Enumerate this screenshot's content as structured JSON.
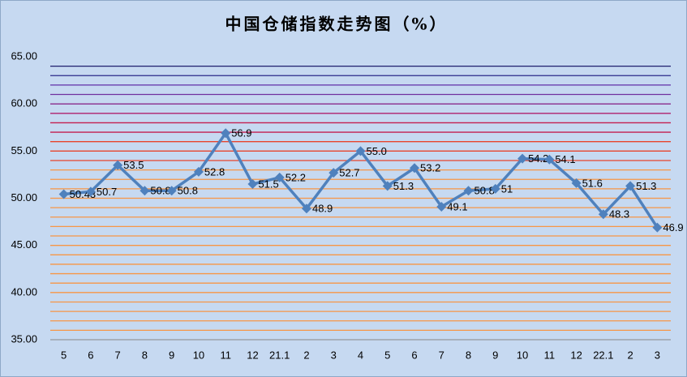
{
  "chart_data": {
    "type": "line",
    "title": "中国仓储指数走势图（%）",
    "categories": [
      "5",
      "6",
      "7",
      "8",
      "9",
      "10",
      "11",
      "12",
      "21.1",
      "2",
      "3",
      "4",
      "5",
      "6",
      "7",
      "8",
      "9",
      "10",
      "11",
      "12",
      "22.1",
      "2",
      "3"
    ],
    "series": [
      {
        "name": "中国仓储指数",
        "color": "#4f81bd",
        "values": [
          50.43,
          50.7,
          53.5,
          50.8,
          50.8,
          52.8,
          56.9,
          51.5,
          52.2,
          48.9,
          52.7,
          55.0,
          51.3,
          53.2,
          49.1,
          50.8,
          51,
          54.2,
          54.1,
          51.6,
          48.3,
          51.3,
          46.9
        ],
        "value_labels": [
          "50.43",
          "50.7",
          "53.5",
          "50.8",
          "50.8",
          "52.8",
          "56.9",
          "51.5",
          "52.2",
          "48.9",
          "52.7",
          "55.0",
          "51.3",
          "53.2",
          "49.1",
          "50.8",
          "51",
          "54.2",
          "54.1",
          "51.6",
          "48.3",
          "51.3",
          "46.9"
        ]
      }
    ],
    "ylim": [
      35,
      65
    ],
    "yticks": [
      {
        "value": 35,
        "label": "35.00"
      },
      {
        "value": 40,
        "label": "40.00"
      },
      {
        "value": 45,
        "label": "45.00"
      },
      {
        "value": 50,
        "label": "50.00"
      },
      {
        "value": 55,
        "label": "55.00"
      },
      {
        "value": 60,
        "label": "60.00"
      },
      {
        "value": 65,
        "label": "65.00"
      }
    ],
    "gridlines": [
      {
        "value": 36,
        "color": "#f79646"
      },
      {
        "value": 37,
        "color": "#f79646"
      },
      {
        "value": 38,
        "color": "#f79646"
      },
      {
        "value": 39,
        "color": "#f79646"
      },
      {
        "value": 40,
        "color": "#f79646"
      },
      {
        "value": 41,
        "color": "#f79646"
      },
      {
        "value": 42,
        "color": "#f79646"
      },
      {
        "value": 43,
        "color": "#f79646"
      },
      {
        "value": 44,
        "color": "#f79646"
      },
      {
        "value": 45,
        "color": "#f79646"
      },
      {
        "value": 46,
        "color": "#f79646"
      },
      {
        "value": 47,
        "color": "#f79646"
      },
      {
        "value": 48,
        "color": "#f79646"
      },
      {
        "value": 49,
        "color": "#f79646"
      },
      {
        "value": 50,
        "color": "#f79646"
      },
      {
        "value": 51,
        "color": "#f79646"
      },
      {
        "value": 52,
        "color": "#f79646"
      },
      {
        "value": 53,
        "color": "#f79646"
      },
      {
        "value": 54,
        "color": "#e8442c"
      },
      {
        "value": 55,
        "color": "#e8442c"
      },
      {
        "value": 56,
        "color": "#e8442c"
      },
      {
        "value": 57,
        "color": "#c41e4f"
      },
      {
        "value": 58,
        "color": "#c41e4f"
      },
      {
        "value": 59,
        "color": "#b0206e"
      },
      {
        "value": 60,
        "color": "#8a2a8c"
      },
      {
        "value": 61,
        "color": "#7030a0"
      },
      {
        "value": 62,
        "color": "#6030a8"
      },
      {
        "value": 63,
        "color": "#2a2a8a"
      },
      {
        "value": 64,
        "color": "#1f1f6e"
      }
    ]
  }
}
